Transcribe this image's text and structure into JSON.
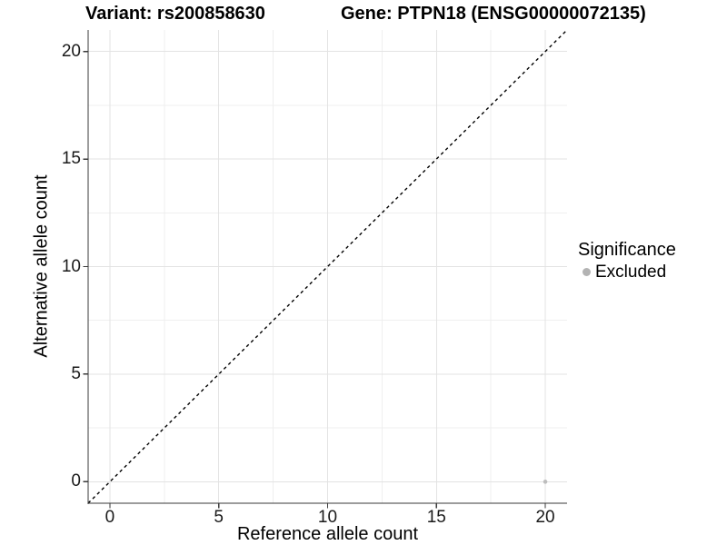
{
  "chart_data": {
    "type": "scatter",
    "title_left": "Variant: rs200858630",
    "title_right": "Gene: PTPN18 (ENSG00000072135)",
    "xlabel": "Reference allele count",
    "ylabel": "Alternative allele count",
    "xlim": [
      -1,
      21
    ],
    "ylim": [
      -1,
      21
    ],
    "x_ticks": [
      0,
      5,
      10,
      15,
      20
    ],
    "y_ticks": [
      0,
      5,
      10,
      15,
      20
    ],
    "x_minor_ticks": [
      2.5,
      7.5,
      12.5,
      17.5
    ],
    "y_minor_ticks": [
      2.5,
      7.5,
      12.5,
      17.5
    ],
    "grid": true,
    "legend_position": "right",
    "points": [
      {
        "x": 20,
        "y": 0,
        "series": "Excluded"
      }
    ],
    "reference_line": {
      "slope": 1,
      "intercept": 0,
      "style": "dashed"
    },
    "legend": {
      "title": "Significance",
      "items": [
        {
          "label": "Excluded",
          "color": "#b3b3b3"
        }
      ]
    },
    "colors": {
      "point": "#bdbdbd",
      "grid_major": "#e3e3e3",
      "grid_minor": "#efefef",
      "axis_line": "#3a3a3a",
      "reference_line": "#000000"
    }
  }
}
